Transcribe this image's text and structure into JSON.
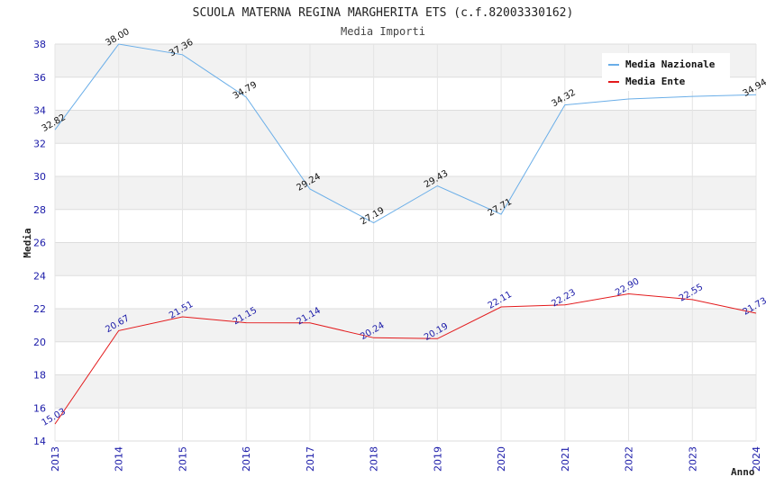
{
  "chart_data": {
    "type": "line",
    "title": "SCUOLA MATERNA REGINA MARGHERITA ETS (c.f.82003330162)",
    "subtitle": "Media Importi",
    "xlabel": "Anno",
    "ylabel": "Media",
    "ylim": [
      14,
      38
    ],
    "yticks": [
      14,
      16,
      18,
      20,
      22,
      24,
      26,
      28,
      30,
      32,
      34,
      36,
      38
    ],
    "grid": "alternating horizontal bands",
    "legend_position": "top-right",
    "x": [
      "2013",
      "2014",
      "2015",
      "2016",
      "2017",
      "2018",
      "2019",
      "2020",
      "2021",
      "2022",
      "2023",
      "2024"
    ],
    "series": [
      {
        "name": "Media Nazionale",
        "color": "#6aaee8",
        "label_color": "#111111",
        "values": [
          32.82,
          38.0,
          37.36,
          34.79,
          29.24,
          27.19,
          29.43,
          27.71,
          34.32,
          34.68,
          34.84,
          34.94
        ],
        "labels": [
          "32.82",
          "38.00",
          "37.36",
          "34.79",
          "29.24",
          "27.19",
          "29.43",
          "27.71",
          "34.32",
          "",
          "",
          "34.94"
        ]
      },
      {
        "name": "Media Ente",
        "color": "#e31a1c",
        "label_color": "#1a1aa8",
        "values": [
          15.03,
          20.67,
          21.51,
          21.15,
          21.14,
          20.24,
          20.19,
          22.11,
          22.23,
          22.9,
          22.55,
          21.73
        ],
        "labels": [
          "15.03",
          "20.67",
          "21.51",
          "21.15",
          "21.14",
          "20.24",
          "20.19",
          "22.11",
          "22.23",
          "22.90",
          "22.55",
          "21.73"
        ]
      }
    ]
  }
}
